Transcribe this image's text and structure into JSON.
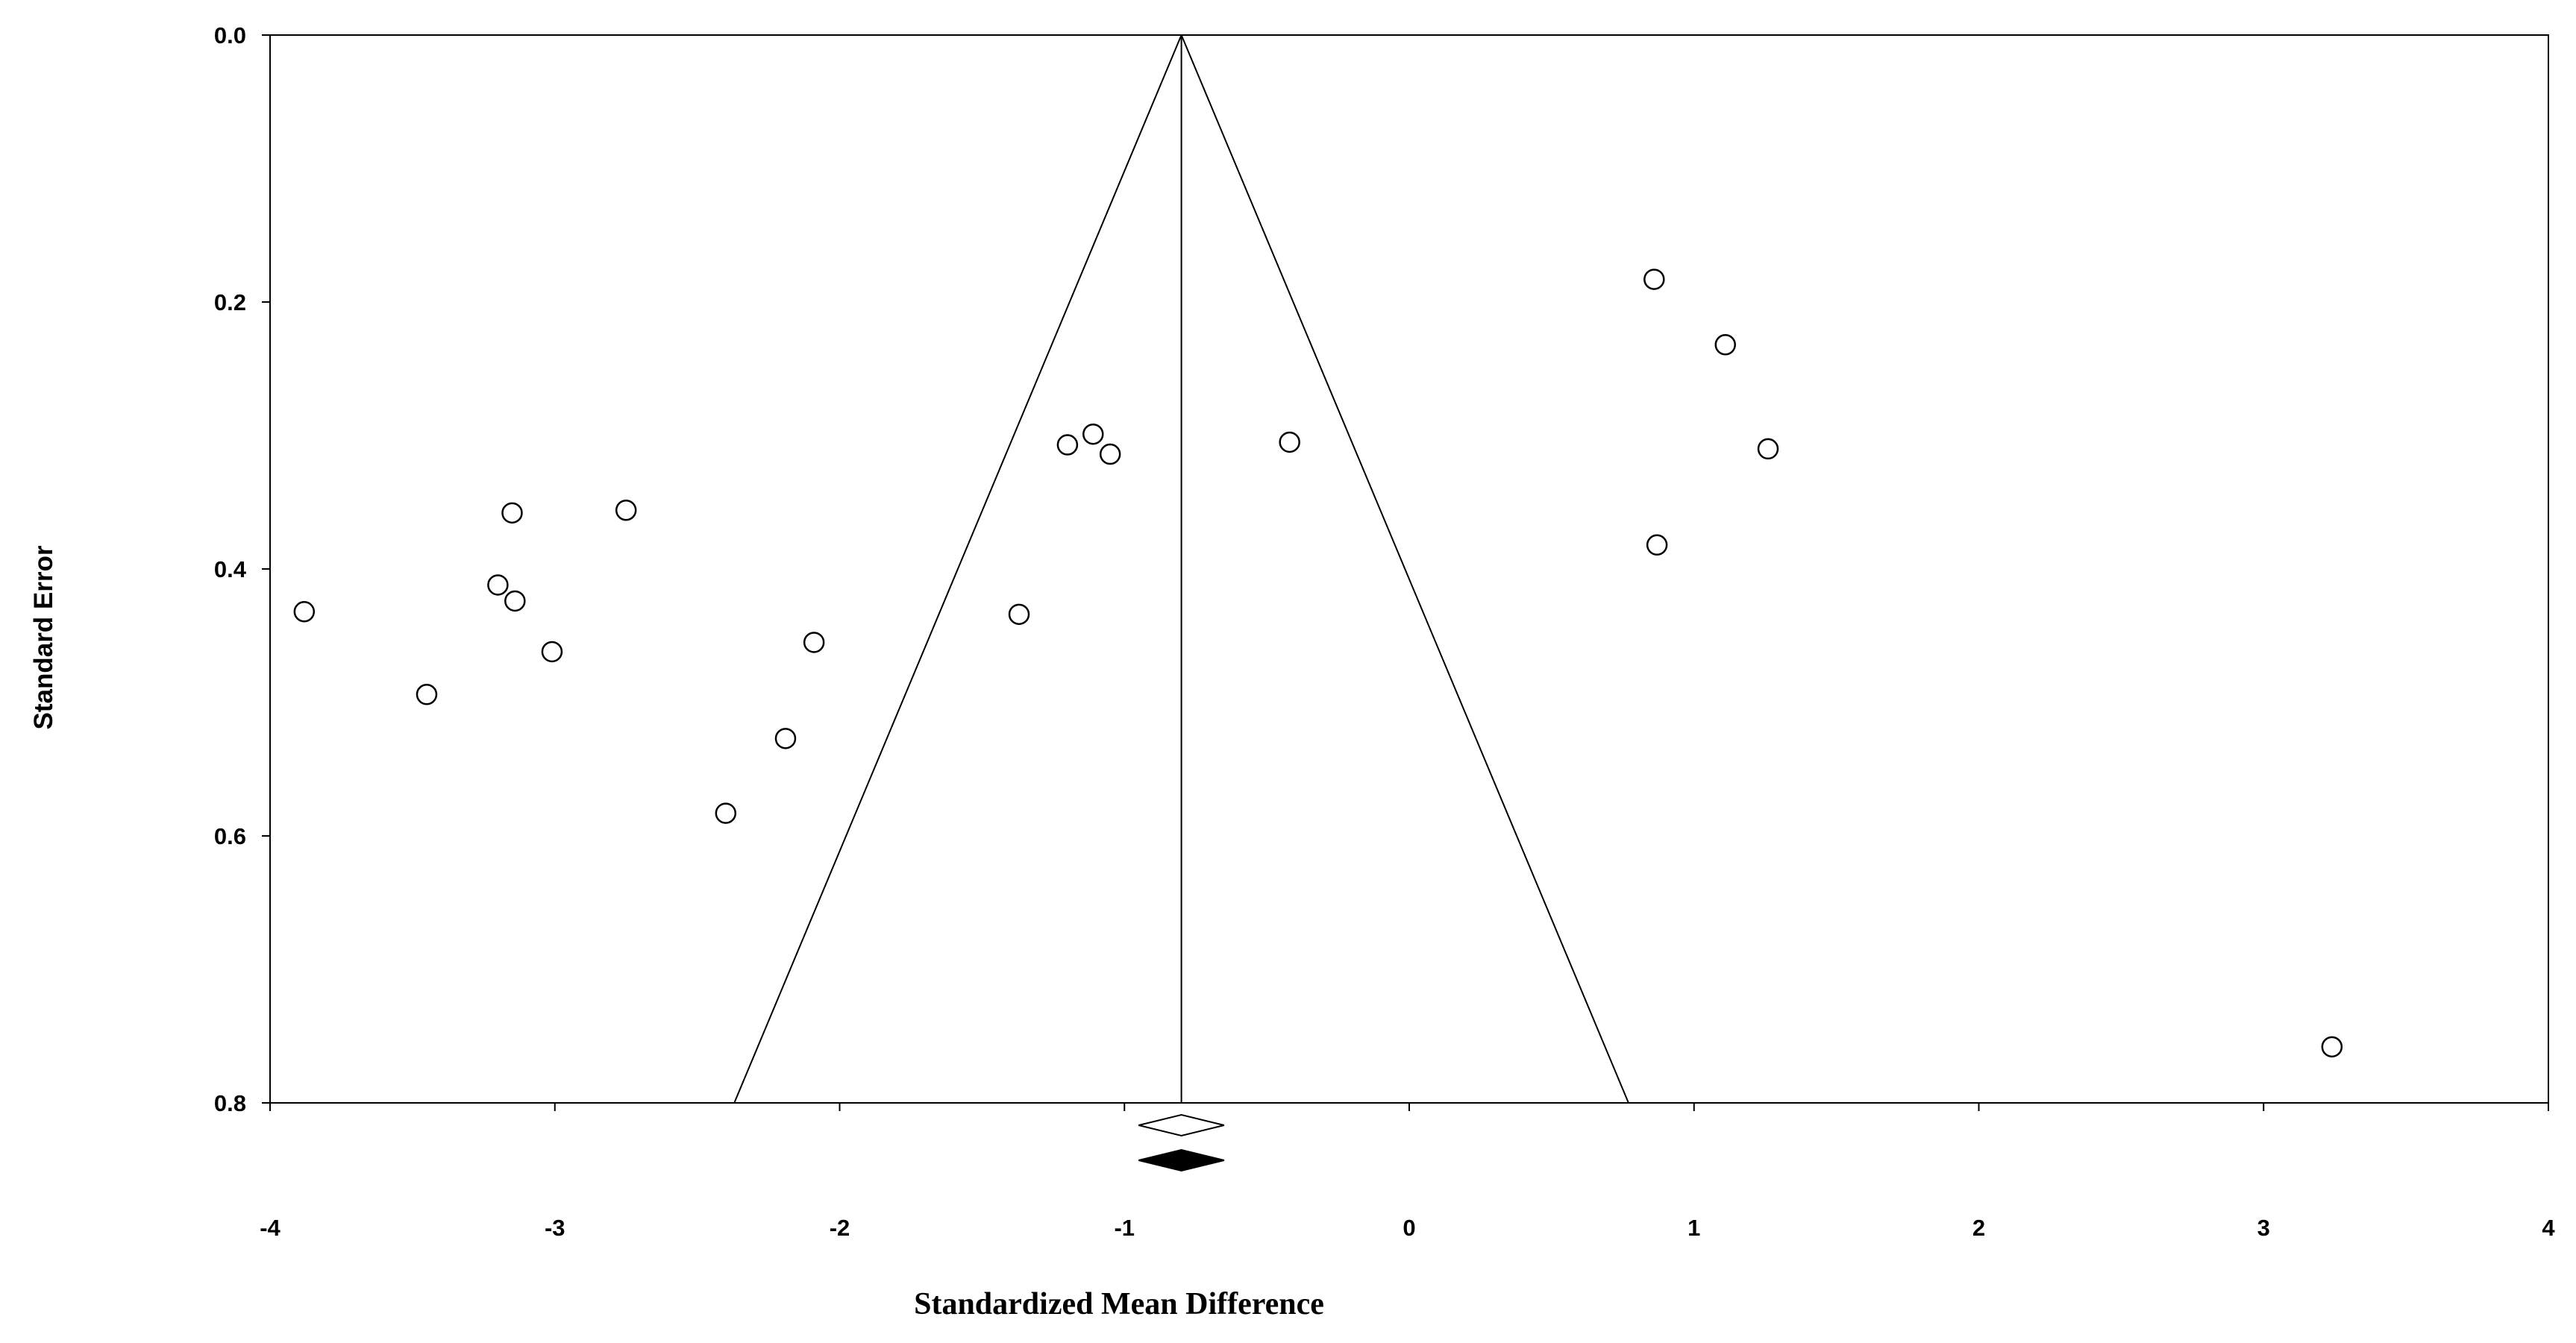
{
  "chart_data": {
    "type": "scatter",
    "title": "",
    "xlabel": "Standardized Mean Difference",
    "ylabel": "Standard Error",
    "xlim": [
      -4,
      4
    ],
    "ylim": [
      0.0,
      0.8
    ],
    "y_inverted": true,
    "grid": false,
    "x_ticks": [
      -4,
      -3,
      -2,
      -1,
      0,
      1,
      2,
      3,
      4
    ],
    "y_ticks": [
      0.0,
      0.2,
      0.4,
      0.6,
      0.8
    ],
    "x_tick_labels": [
      "-4",
      "-3",
      "-2",
      "-1",
      "0",
      "1",
      "2",
      "3",
      "4"
    ],
    "y_tick_labels": [
      "0.0",
      "0.2",
      "0.4",
      "0.6",
      "0.8"
    ],
    "pooled_estimate": -0.8,
    "funnel": {
      "apex": [
        -0.8,
        0.0
      ],
      "bottom_left": [
        -2.37,
        0.8
      ],
      "bottom_right": [
        0.77,
        0.8
      ]
    },
    "summary_diamonds": [
      {
        "name": "observed",
        "center": -0.8,
        "lower": -0.95,
        "upper": -0.65,
        "fill": "#ffffff"
      },
      {
        "name": "adjusted",
        "center": -0.8,
        "lower": -0.95,
        "upper": -0.65,
        "fill": "#000000"
      }
    ],
    "points": [
      {
        "x": -3.88,
        "y": 0.432
      },
      {
        "x": -3.45,
        "y": 0.494
      },
      {
        "x": -3.2,
        "y": 0.412
      },
      {
        "x": -3.15,
        "y": 0.358
      },
      {
        "x": -3.14,
        "y": 0.424
      },
      {
        "x": -3.01,
        "y": 0.462
      },
      {
        "x": -2.75,
        "y": 0.356
      },
      {
        "x": -2.4,
        "y": 0.583
      },
      {
        "x": -2.19,
        "y": 0.527
      },
      {
        "x": -2.09,
        "y": 0.455
      },
      {
        "x": -1.37,
        "y": 0.434
      },
      {
        "x": -1.2,
        "y": 0.307
      },
      {
        "x": -1.11,
        "y": 0.299
      },
      {
        "x": -1.05,
        "y": 0.314
      },
      {
        "x": -0.42,
        "y": 0.305
      },
      {
        "x": 0.86,
        "y": 0.183
      },
      {
        "x": 0.87,
        "y": 0.382
      },
      {
        "x": 1.11,
        "y": 0.232
      },
      {
        "x": 1.26,
        "y": 0.31
      },
      {
        "x": 3.24,
        "y": 0.758
      }
    ]
  }
}
